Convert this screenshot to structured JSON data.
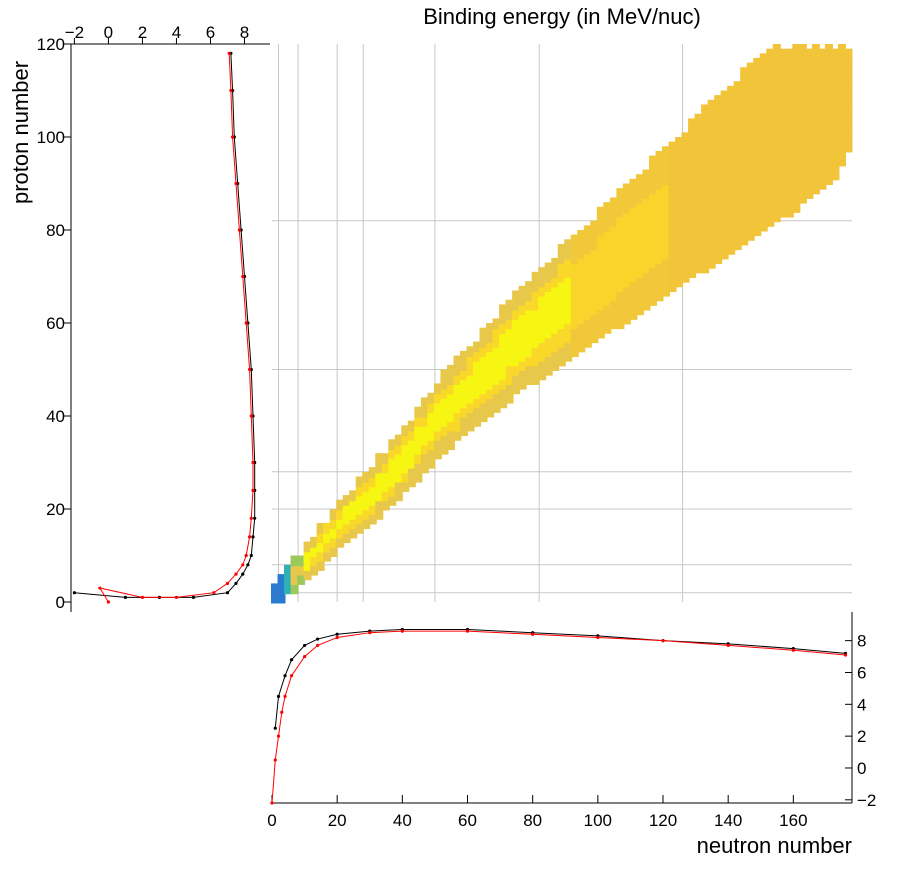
{
  "chart_data": {
    "type": "heatmap",
    "title": "Binding energy (in MeV/nuc)",
    "xlabel": "neutron number",
    "ylabel": "proton number",
    "xlim": [
      0,
      178
    ],
    "ylim": [
      0,
      120
    ],
    "grid": true,
    "x_ticks": [
      "0",
      "20",
      "40",
      "60",
      "80",
      "100",
      "120",
      "140",
      "160"
    ],
    "y_ticks": [
      "0",
      "20",
      "40",
      "60",
      "80",
      "100",
      "120"
    ],
    "color_scale": [
      "#2a7bd0",
      "#2fb0b4",
      "#9cc85c",
      "#e8c84a",
      "#f7e324",
      "#f6f612"
    ],
    "valley": {
      "centers": [
        [
          0,
          0
        ],
        [
          2,
          2
        ],
        [
          4,
          4
        ],
        [
          6,
          5
        ],
        [
          10,
          8
        ],
        [
          14,
          11
        ],
        [
          20,
          16
        ],
        [
          28,
          21
        ],
        [
          40,
          30
        ],
        [
          52,
          40
        ],
        [
          64,
          48
        ],
        [
          76,
          56
        ],
        [
          90,
          64
        ],
        [
          104,
          72
        ],
        [
          118,
          80
        ],
        [
          132,
          88
        ],
        [
          146,
          96
        ],
        [
          160,
          104
        ],
        [
          172,
          112
        ],
        [
          176,
          118
        ]
      ],
      "note_be": [
        [
          0,
          1.1
        ],
        [
          4,
          5.6
        ],
        [
          8,
          7.5
        ],
        [
          14,
          8.2
        ],
        [
          28,
          8.6
        ],
        [
          40,
          8.7
        ],
        [
          56,
          8.7
        ],
        [
          70,
          8.6
        ],
        [
          90,
          8.4
        ],
        [
          110,
          8.1
        ],
        [
          130,
          7.9
        ],
        [
          150,
          7.7
        ],
        [
          170,
          7.5
        ]
      ]
    },
    "side_projection_proton": {
      "xlabel_ticks": [
        "−2",
        "0",
        "2",
        "4",
        "6",
        "8"
      ],
      "xlim": [
        -2.2,
        9.5
      ],
      "series": [
        {
          "color": "#000000",
          "points": [
            [
              -2.0,
              2
            ],
            [
              1.0,
              1
            ],
            [
              3.0,
              1
            ],
            [
              5.0,
              1
            ],
            [
              7.0,
              2
            ],
            [
              7.5,
              4
            ],
            [
              7.9,
              6
            ],
            [
              8.2,
              8
            ],
            [
              8.4,
              10
            ],
            [
              8.5,
              14
            ],
            [
              8.6,
              18
            ],
            [
              8.6,
              24
            ],
            [
              8.6,
              30
            ],
            [
              8.5,
              40
            ],
            [
              8.4,
              50
            ],
            [
              8.2,
              60
            ],
            [
              8.0,
              70
            ],
            [
              7.8,
              80
            ],
            [
              7.6,
              90
            ],
            [
              7.4,
              100
            ],
            [
              7.3,
              110
            ],
            [
              7.2,
              118
            ]
          ]
        },
        {
          "color": "#ff0000",
          "points": [
            [
              0.0,
              0
            ],
            [
              -0.5,
              3
            ],
            [
              2.0,
              1
            ],
            [
              4.0,
              1
            ],
            [
              6.2,
              2
            ],
            [
              7.0,
              4
            ],
            [
              7.5,
              6
            ],
            [
              7.9,
              8
            ],
            [
              8.1,
              10
            ],
            [
              8.3,
              14
            ],
            [
              8.4,
              18
            ],
            [
              8.5,
              24
            ],
            [
              8.5,
              30
            ],
            [
              8.4,
              40
            ],
            [
              8.3,
              50
            ],
            [
              8.1,
              60
            ],
            [
              7.9,
              70
            ],
            [
              7.7,
              80
            ],
            [
              7.5,
              90
            ],
            [
              7.3,
              100
            ],
            [
              7.2,
              110
            ],
            [
              7.1,
              118
            ]
          ]
        }
      ]
    },
    "side_projection_neutron": {
      "ylabel_ticks": [
        "−2",
        "0",
        "2",
        "4",
        "6",
        "8"
      ],
      "ylim": [
        -2.2,
        9.8
      ],
      "series": [
        {
          "color": "#000000",
          "points": [
            [
              1,
              2.5
            ],
            [
              2,
              4.5
            ],
            [
              4,
              5.8
            ],
            [
              6,
              6.8
            ],
            [
              10,
              7.7
            ],
            [
              14,
              8.1
            ],
            [
              20,
              8.4
            ],
            [
              30,
              8.6
            ],
            [
              40,
              8.7
            ],
            [
              60,
              8.7
            ],
            [
              80,
              8.5
            ],
            [
              100,
              8.3
            ],
            [
              120,
              8.0
            ],
            [
              140,
              7.8
            ],
            [
              160,
              7.5
            ],
            [
              176,
              7.2
            ]
          ]
        },
        {
          "color": "#ff0000",
          "points": [
            [
              0,
              -2.2
            ],
            [
              1,
              0.5
            ],
            [
              2,
              2.0
            ],
            [
              3,
              3.5
            ],
            [
              4,
              4.5
            ],
            [
              6,
              5.8
            ],
            [
              10,
              7.0
            ],
            [
              14,
              7.7
            ],
            [
              20,
              8.2
            ],
            [
              30,
              8.5
            ],
            [
              40,
              8.6
            ],
            [
              60,
              8.6
            ],
            [
              80,
              8.4
            ],
            [
              100,
              8.2
            ],
            [
              120,
              8.0
            ],
            [
              140,
              7.7
            ],
            [
              160,
              7.4
            ],
            [
              176,
              7.1
            ]
          ]
        }
      ]
    }
  }
}
